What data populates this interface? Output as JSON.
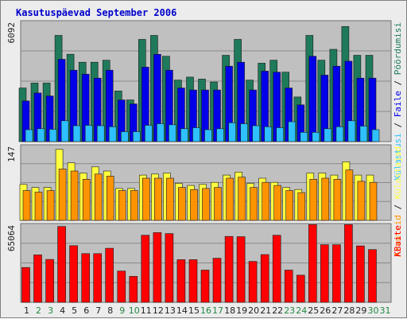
{
  "chart_data": {
    "type": "bar",
    "title": "Kasutuspäevad September 2006",
    "categories": [
      "1",
      "2",
      "3",
      "4",
      "5",
      "6",
      "7",
      "8",
      "9",
      "10",
      "11",
      "12",
      "13",
      "14",
      "15",
      "16",
      "17",
      "18",
      "19",
      "20",
      "21",
      "22",
      "23",
      "24",
      "25",
      "26",
      "27",
      "28",
      "29",
      "30",
      "31"
    ],
    "weekend_days": [
      "2",
      "3",
      "9",
      "10",
      "16",
      "17",
      "23",
      "24",
      "30",
      "31"
    ],
    "colors": {
      "title": "#0000cc",
      "weekday_label": "#222222",
      "weekend_label": "#228844",
      "plot_bg": "#c0c0c0",
      "gridline": "#8a8a8a"
    },
    "panels": [
      {
        "ylabel": "6092",
        "ymax": 6092,
        "series": [
          {
            "name": "Pöördumisi",
            "color": "#1e7a5a",
            "values": [
              2700,
              2950,
              2950,
              5350,
              4400,
              4000,
              4000,
              4100,
              2550,
              2100,
              5150,
              5350,
              4300,
              3100,
              3250,
              3150,
              3000,
              4350,
              5150,
              3100,
              3950,
              4100,
              3500,
              2250,
              5350,
              4100,
              4650,
              5800,
              4350,
              4350,
              null
            ]
          },
          {
            "name": "Faile",
            "color": "#0000e8",
            "values": [
              2050,
              2450,
              2300,
              4150,
              3600,
              3400,
              3200,
              3600,
              2100,
              1900,
              3750,
              4400,
              3600,
              2700,
              2600,
              2600,
              2600,
              3800,
              4000,
              2600,
              3550,
              3500,
              2700,
              1850,
              4300,
              3350,
              3800,
              4050,
              3200,
              3200,
              null
            ]
          },
          {
            "name": "Külastusi",
            "color": "#2ec0ff",
            "values": [
              600,
              650,
              620,
              1050,
              800,
              820,
              800,
              750,
              500,
              500,
              820,
              900,
              850,
              650,
              700,
              600,
              650,
              950,
              900,
              800,
              750,
              700,
              1000,
              470,
              470,
              650,
              750,
              1050,
              780,
              600,
              null
            ]
          }
        ]
      },
      {
        "ylabel": "147",
        "ymax": 147,
        "series": [
          {
            "name": "Külastajad",
            "color": "#ffff40",
            "values": [
              70,
              64,
              64,
              138,
              112,
              92,
              104,
              96,
              62,
              62,
              88,
              90,
              92,
              72,
              68,
              70,
              74,
              88,
              94,
              72,
              82,
              74,
              64,
              60,
              92,
              92,
              88,
              114,
              88,
              88,
              null
            ]
          },
          {
            "name": "Arvuteid",
            "color": "#ff9400",
            "values": [
              58,
              55,
              58,
              100,
              96,
              80,
              90,
              86,
              58,
              58,
              82,
              82,
              82,
              64,
              60,
              62,
              64,
              82,
              84,
              64,
              74,
              68,
              58,
              54,
              80,
              82,
              80,
              98,
              76,
              74,
              null
            ]
          }
        ]
      },
      {
        "ylabel": "65064",
        "ymax": 65064,
        "series": [
          {
            "name": "KBaite",
            "color": "#ff0000",
            "values": [
              28800,
              39200,
              35400,
              62600,
              46800,
              40200,
              40200,
              44600,
              25800,
              21400,
              55400,
              57600,
              56800,
              35200,
              35200,
              26600,
              36400,
              54400,
              54200,
              33800,
              39400,
              55400,
              26600,
              22400,
              64200,
              47600,
              47600,
              64200,
              46600,
              43600,
              null
            ]
          }
        ]
      }
    ]
  }
}
